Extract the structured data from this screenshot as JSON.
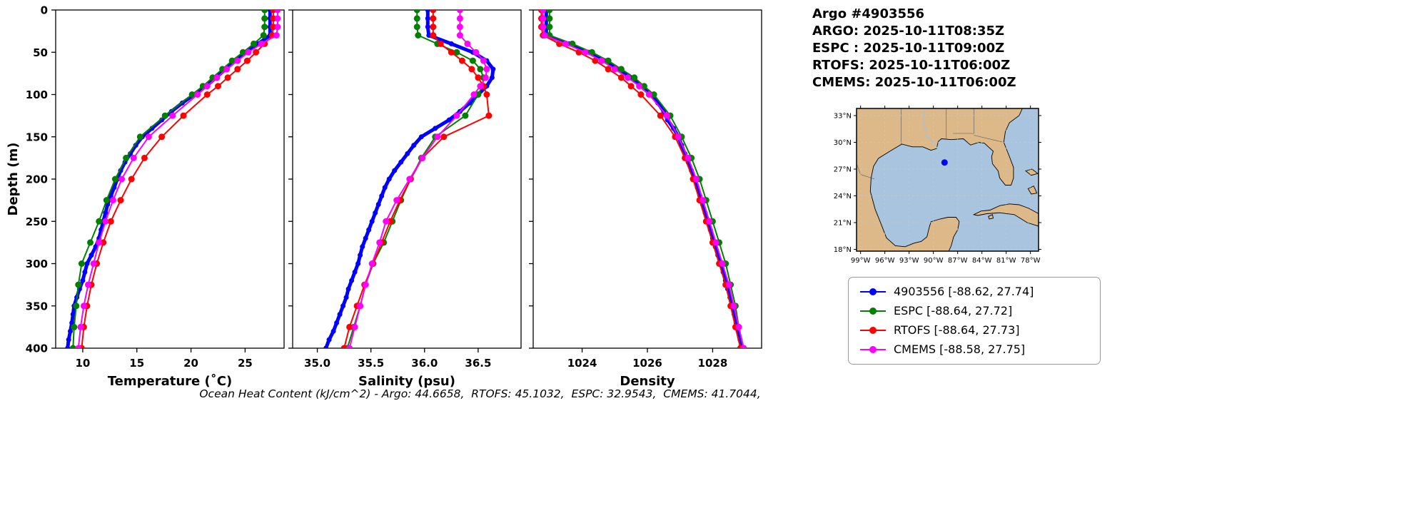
{
  "header": {
    "title": "Argo #4903556",
    "lines": [
      "ARGO: 2025-10-11T08:35Z",
      "ESPC : 2025-10-11T09:00Z",
      "RTOFS: 2025-10-11T06:00Z",
      "CMEMS: 2025-10-11T06:00Z"
    ]
  },
  "footer": {
    "text": "Ocean Heat Content (kJ/cm^2) - Argo: 44.6658,  RTOFS: 45.1032,  ESPC: 32.9543,  CMEMS: 41.7044,"
  },
  "legend": {
    "items": [
      {
        "key": "argo",
        "label": "4903556 [-88.62, 27.74]",
        "color": "#0000ff"
      },
      {
        "key": "espc",
        "label": "ESPC [-88.64, 27.72]",
        "color": "#008000"
      },
      {
        "key": "rtofs",
        "label": "RTOFS [-88.64, 27.73]",
        "color": "#ff0000"
      },
      {
        "key": "cmems",
        "label": "CMEMS [-88.58, 27.75]",
        "color": "#ff00ff"
      }
    ]
  },
  "map": {
    "lon_range": [
      -99.5,
      -77.0
    ],
    "lat_range": [
      17.8,
      33.8
    ],
    "lon_ticks": [
      {
        "v": -99,
        "label": "99°W"
      },
      {
        "v": -96,
        "label": "96°W"
      },
      {
        "v": -93,
        "label": "93°W"
      },
      {
        "v": -90,
        "label": "90°W"
      },
      {
        "v": -87,
        "label": "87°W"
      },
      {
        "v": -84,
        "label": "84°W"
      },
      {
        "v": -81,
        "label": "81°W"
      },
      {
        "v": -78,
        "label": "78°W"
      }
    ],
    "lat_ticks": [
      {
        "v": 18,
        "label": "18°N"
      },
      {
        "v": 21,
        "label": "21°N"
      },
      {
        "v": 24,
        "label": "24°N"
      },
      {
        "v": 27,
        "label": "27°N"
      },
      {
        "v": 30,
        "label": "30°N"
      },
      {
        "v": 33,
        "label": "33°N"
      }
    ],
    "float": {
      "lon": -88.62,
      "lat": 27.74,
      "color": "#0000ff"
    },
    "colors": {
      "water": "#a8c4de",
      "land": "#ddb98a",
      "coast": "#000000",
      "river": "#9ec3e6"
    }
  },
  "chart_data": {
    "type": "line",
    "profile": true,
    "ylabel": "Depth (m)",
    "ylim": [
      0,
      400
    ],
    "yticks": [
      {
        "v": 0,
        "label": "0"
      },
      {
        "v": 50,
        "label": "50"
      },
      {
        "v": 100,
        "label": "100"
      },
      {
        "v": 150,
        "label": "150"
      },
      {
        "v": 200,
        "label": "200"
      },
      {
        "v": 250,
        "label": "250"
      },
      {
        "v": 300,
        "label": "300"
      },
      {
        "v": 350,
        "label": "350"
      },
      {
        "v": 400,
        "label": "400"
      }
    ],
    "panels": [
      {
        "id": "temperature",
        "field": "temperature",
        "xlabel": "Temperature (˚C)",
        "xlim": [
          7.5,
          28.6
        ],
        "xticks": [
          {
            "v": 10,
            "label": "10"
          },
          {
            "v": 15,
            "label": "15"
          },
          {
            "v": 20,
            "label": "20"
          },
          {
            "v": 25,
            "label": "25"
          }
        ]
      },
      {
        "id": "salinity",
        "field": "salinity",
        "xlabel": "Salinity (psu)",
        "xlim": [
          34.77,
          36.9
        ],
        "xticks": [
          {
            "v": 35.0,
            "label": "35.0"
          },
          {
            "v": 35.5,
            "label": "35.5"
          },
          {
            "v": 36.0,
            "label": "36.0"
          },
          {
            "v": 36.5,
            "label": "36.5"
          }
        ]
      },
      {
        "id": "density",
        "field": "density",
        "xlabel": "Density",
        "xlim": [
          1022.5,
          1029.5
        ],
        "xticks": [
          {
            "v": 1024,
            "label": "1024"
          },
          {
            "v": 1026,
            "label": "1026"
          },
          {
            "v": 1028,
            "label": "1028"
          }
        ]
      }
    ],
    "series": [
      {
        "key": "argo",
        "name": "4903556",
        "color": "#0000ff",
        "line_width": 5,
        "marker_r": 3.5,
        "depths": [
          0,
          10,
          20,
          30,
          40,
          50,
          60,
          70,
          80,
          90,
          100,
          110,
          120,
          130,
          140,
          150,
          160,
          170,
          180,
          190,
          200,
          210,
          220,
          230,
          240,
          250,
          260,
          270,
          280,
          290,
          300,
          310,
          320,
          330,
          340,
          350,
          360,
          370,
          380,
          390,
          400
        ],
        "temperature": [
          27.3,
          27.3,
          27.3,
          27.3,
          26.2,
          25.1,
          24.1,
          23.2,
          22.3,
          21.4,
          20.3,
          19.2,
          18.2,
          17.3,
          16.4,
          15.5,
          14.9,
          14.4,
          13.9,
          13.5,
          13.2,
          12.9,
          12.6,
          12.3,
          12.1,
          11.9,
          11.7,
          11.5,
          11.2,
          10.8,
          10.4,
          10.2,
          10.0,
          9.7,
          9.45,
          9.2,
          9.1,
          9.0,
          8.85,
          8.7,
          8.6
        ],
        "salinity": [
          36.03,
          36.03,
          36.03,
          36.04,
          36.25,
          36.45,
          36.58,
          36.64,
          36.63,
          36.58,
          36.5,
          36.42,
          36.33,
          36.23,
          36.1,
          35.97,
          35.9,
          35.84,
          35.78,
          35.72,
          35.67,
          35.63,
          35.6,
          35.57,
          35.54,
          35.51,
          35.48,
          35.45,
          35.42,
          35.4,
          35.38,
          35.35,
          35.32,
          35.29,
          35.27,
          35.24,
          35.21,
          35.18,
          35.15,
          35.11,
          35.08
        ],
        "density": [
          1022.9,
          1022.9,
          1022.9,
          1022.9,
          1023.6,
          1024.2,
          1024.7,
          1025.1,
          1025.5,
          1025.8,
          1026.1,
          1026.32,
          1026.5,
          1026.62,
          1026.8,
          1026.95,
          1027.05,
          1027.15,
          1027.25,
          1027.35,
          1027.45,
          1027.53,
          1027.61,
          1027.69,
          1027.77,
          1027.85,
          1027.93,
          1028.0,
          1028.08,
          1028.16,
          1028.25,
          1028.32,
          1028.39,
          1028.46,
          1028.53,
          1028.6,
          1028.66,
          1028.72,
          1028.78,
          1028.84,
          1028.9
        ]
      },
      {
        "key": "espc",
        "name": "ESPC",
        "color": "#008000",
        "line_width": 2,
        "marker_r": 4.5,
        "depths": [
          0,
          10,
          20,
          30,
          40,
          50,
          60,
          70,
          80,
          90,
          100,
          125,
          150,
          175,
          200,
          225,
          250,
          275,
          300,
          325,
          350,
          375,
          400
        ],
        "temperature": [
          26.8,
          26.8,
          26.8,
          26.7,
          25.8,
          24.8,
          23.8,
          22.9,
          22.0,
          21.1,
          20.1,
          17.6,
          15.3,
          14.0,
          13.0,
          12.2,
          11.5,
          10.7,
          9.9,
          9.6,
          9.4,
          9.2,
          9.1
        ],
        "salinity": [
          35.93,
          35.93,
          35.93,
          35.94,
          36.12,
          36.3,
          36.45,
          36.52,
          36.55,
          36.54,
          36.5,
          36.38,
          36.1,
          35.97,
          35.87,
          35.78,
          35.7,
          35.62,
          35.52,
          35.45,
          35.4,
          35.34,
          35.28
        ],
        "density": [
          1023.0,
          1023.0,
          1023.0,
          1023.0,
          1023.7,
          1024.3,
          1024.8,
          1025.2,
          1025.6,
          1025.9,
          1026.2,
          1026.7,
          1027.05,
          1027.35,
          1027.6,
          1027.8,
          1028.0,
          1028.2,
          1028.4,
          1028.55,
          1028.7,
          1028.8,
          1028.95
        ]
      },
      {
        "key": "rtofs",
        "name": "RTOFS",
        "color": "#ff0000",
        "line_width": 2,
        "marker_r": 4.5,
        "depths": [
          0,
          10,
          20,
          30,
          40,
          50,
          60,
          70,
          80,
          90,
          100,
          125,
          150,
          175,
          200,
          225,
          250,
          275,
          300,
          325,
          350,
          375,
          400
        ],
        "temperature": [
          27.6,
          27.6,
          27.6,
          27.5,
          26.8,
          26.0,
          25.2,
          24.3,
          23.4,
          22.5,
          21.5,
          19.3,
          17.3,
          15.7,
          14.5,
          13.5,
          12.6,
          11.9,
          11.3,
          10.8,
          10.4,
          10.1,
          9.9
        ],
        "salinity": [
          36.08,
          36.08,
          36.08,
          36.08,
          36.15,
          36.25,
          36.35,
          36.44,
          36.5,
          36.55,
          36.58,
          36.6,
          36.18,
          35.98,
          35.87,
          35.77,
          35.68,
          35.6,
          35.52,
          35.44,
          35.37,
          35.3,
          35.25
        ],
        "density": [
          1022.75,
          1022.75,
          1022.75,
          1022.8,
          1023.3,
          1023.9,
          1024.4,
          1024.8,
          1025.2,
          1025.5,
          1025.8,
          1026.4,
          1026.85,
          1027.15,
          1027.4,
          1027.6,
          1027.8,
          1028.0,
          1028.2,
          1028.4,
          1028.55,
          1028.7,
          1028.85
        ]
      },
      {
        "key": "cmems",
        "name": "CMEMS",
        "color": "#ff00ff",
        "line_width": 2,
        "marker_r": 4.5,
        "depths": [
          0,
          10,
          20,
          30,
          40,
          50,
          60,
          70,
          80,
          90,
          100,
          125,
          150,
          175,
          200,
          225,
          250,
          275,
          300,
          325,
          350,
          375,
          400
        ],
        "temperature": [
          28.0,
          28.0,
          28.0,
          27.9,
          26.5,
          25.3,
          24.3,
          23.3,
          22.4,
          21.5,
          20.6,
          18.3,
          16.1,
          14.7,
          13.6,
          12.8,
          12.1,
          11.5,
          11.0,
          10.5,
          10.1,
          9.8,
          9.6
        ],
        "salinity": [
          36.33,
          36.33,
          36.33,
          36.33,
          36.4,
          36.48,
          36.55,
          36.58,
          36.57,
          36.52,
          36.46,
          36.3,
          36.12,
          35.98,
          35.86,
          35.74,
          35.64,
          35.58,
          35.51,
          35.45,
          35.4,
          35.35,
          35.3
        ],
        "density": [
          1022.8,
          1022.8,
          1022.8,
          1022.85,
          1023.5,
          1024.1,
          1024.6,
          1025.0,
          1025.4,
          1025.75,
          1026.05,
          1026.6,
          1026.95,
          1027.25,
          1027.5,
          1027.7,
          1027.9,
          1028.1,
          1028.3,
          1028.5,
          1028.65,
          1028.8,
          1028.95
        ]
      }
    ]
  }
}
